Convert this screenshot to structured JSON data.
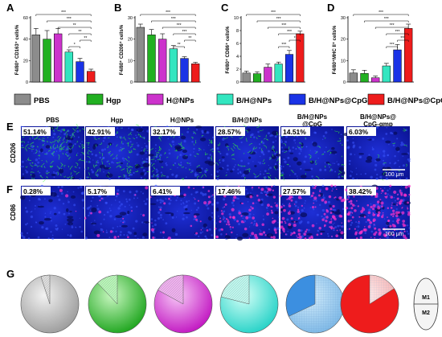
{
  "groups": [
    "PBS",
    "Hgp",
    "H@NPs",
    "B/H@NPs",
    "B/H@NPs@CpG",
    "B/H@NPs@CpG-αmp"
  ],
  "colors": [
    "#8c8c8c",
    "#22b022",
    "#cc33cc",
    "#33e6c0",
    "#1a33e6",
    "#ee1c1c"
  ],
  "chart_data": [
    {
      "panel": "A",
      "type": "bar",
      "ylabel": "F4/80⁺ CD163⁺ cells%",
      "ylim": [
        0,
        60
      ],
      "yticks": [
        0,
        20,
        40,
        60
      ],
      "values": [
        44,
        40,
        45,
        28,
        19,
        10
      ],
      "errors": [
        6,
        8,
        5,
        2,
        3,
        2
      ],
      "significance": [
        "***",
        "***",
        "**",
        "**",
        "**",
        "*"
      ]
    },
    {
      "panel": "B",
      "type": "bar",
      "ylabel": "F4/80⁺ CD206⁺ cells%",
      "ylim": [
        0,
        30
      ],
      "yticks": [
        0,
        10,
        20,
        30
      ],
      "values": [
        25.5,
        22,
        20,
        15.5,
        11,
        8.5
      ],
      "errors": [
        1.5,
        2.5,
        2.5,
        1.5,
        0.8,
        0.7
      ],
      "significance": [
        "***",
        "***",
        "***",
        "***",
        "**",
        "**"
      ]
    },
    {
      "panel": "C",
      "type": "bar",
      "ylabel": "F4/80⁺ CD86⁺ cells%",
      "ylim": [
        0,
        10
      ],
      "yticks": [
        0,
        2,
        4,
        6,
        8,
        10
      ],
      "values": [
        1.4,
        1.3,
        2.3,
        2.8,
        4.3,
        7.5
      ],
      "errors": [
        0.3,
        0.3,
        0.5,
        0.3,
        0.6,
        0.4
      ],
      "significance": [
        "***",
        "***",
        "***",
        "***",
        "*",
        "***"
      ]
    },
    {
      "panel": "D",
      "type": "bar",
      "ylabel": "F4/80⁺MHC II⁺ cells%",
      "ylim": [
        0,
        30
      ],
      "yticks": [
        0,
        10,
        20,
        30
      ],
      "values": [
        4.2,
        4,
        2,
        7.5,
        15,
        25
      ],
      "errors": [
        1.5,
        1.5,
        0.8,
        1.2,
        2.5,
        2
      ],
      "significance": [
        "***",
        "***",
        "***",
        "***",
        "***",
        "***"
      ]
    }
  ],
  "legend": [
    "PBS",
    "Hgp",
    "H@NPs",
    "B/H@NPs",
    "B/H@NPs@CpG",
    "B/H@NPs@CpG-αmp"
  ],
  "panel_e": {
    "letter": "E",
    "column_labels": [
      "PBS",
      "Hgp",
      "H@NPs",
      "B/H@NPs",
      "B/H@NPs\n@CpG",
      "B/H@NPs@\nCpG-αmp"
    ],
    "row_label": "CD206",
    "percentages": [
      "51.14%",
      "42.91%",
      "32.17%",
      "28.57%",
      "14.51%",
      "6.03%"
    ],
    "scale_bar": "100 μm"
  },
  "panel_f": {
    "letter": "F",
    "row_label": "CD86",
    "percentages": [
      "0.28%",
      "5.17%",
      "6.41%",
      "17.46%",
      "27.57%",
      "38.42%"
    ],
    "scale_bar": "100 μm"
  },
  "panel_g": {
    "letter": "G",
    "m1_fraction": [
      0.05,
      0.12,
      0.17,
      0.21,
      0.32,
      0.84
    ],
    "m1_label": "M1",
    "m2_label": "M2"
  },
  "panel_letters": [
    "A",
    "B",
    "C",
    "D"
  ]
}
